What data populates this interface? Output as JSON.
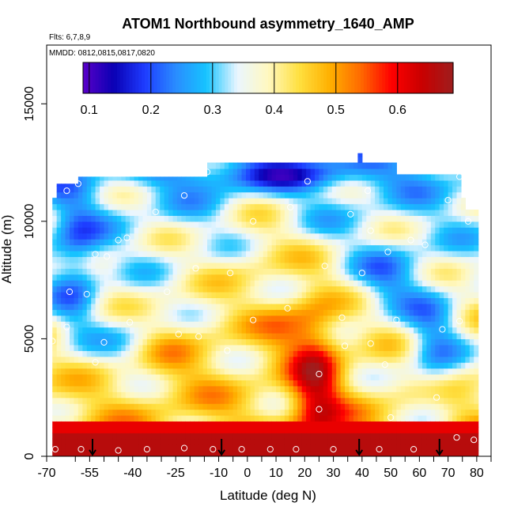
{
  "chart_data": {
    "type": "heatmap",
    "title": "ATOM1 Northbound asymmetry_1640_AMP",
    "notes": {
      "flights": "Flts: 6,7,8,9",
      "dates": "MMDD: 0812,0815,0817,0820"
    },
    "xlabel": "Latitude (deg N)",
    "ylabel": "Altitude (m)",
    "xlim": [
      -70,
      85
    ],
    "ylim": [
      0,
      17500
    ],
    "x_ticks": [
      -70,
      -55,
      -40,
      -25,
      -10,
      0,
      10,
      20,
      30,
      40,
      50,
      60,
      70,
      80
    ],
    "x_tick_labels": [
      "-70",
      "-55",
      "-40",
      "-25",
      "-10",
      "0",
      "10",
      "20",
      "30",
      "40",
      "50",
      "60",
      "70",
      "80"
    ],
    "x_minor_ticks": [
      -60,
      -50,
      -45,
      -35,
      -30,
      -20,
      -15,
      -5,
      5,
      15,
      25,
      35,
      45,
      55,
      65,
      75,
      85
    ],
    "y_ticks": [
      0,
      5000,
      10000,
      15000
    ],
    "y_tick_labels": [
      "0",
      "5000",
      "10000",
      "15000"
    ],
    "colorbar": {
      "min": 0.09,
      "max": 0.69,
      "ticks": [
        0.1,
        0.2,
        0.3,
        0.4,
        0.5,
        0.6
      ],
      "tick_labels": [
        "0.1",
        "0.2",
        "0.3",
        "0.4",
        "0.5",
        "0.6"
      ],
      "colors": [
        "#5a00c8",
        "#0a00b4",
        "#1e3cff",
        "#2a8cff",
        "#16c4ff",
        "#eaf6ff",
        "#fff8c0",
        "#ffe040",
        "#ffb000",
        "#ff6a00",
        "#ff0000",
        "#c80000",
        "#9e1e1e"
      ]
    },
    "grid": false,
    "legend": "colorbar top, inside plot",
    "arrow_markers_latitude": [
      -54,
      -9,
      39,
      67
    ],
    "field_regions": [
      {
        "name": "deep tropical red core",
        "lat_range": [
          18,
          32
        ],
        "alt_range": [
          0,
          6500
        ],
        "value": 0.62
      },
      {
        "name": "surface layer",
        "lat_range": [
          -68,
          80
        ],
        "alt_range": [
          0,
          1000
        ],
        "value": 0.66
      },
      {
        "name": "southern mid-troposphere blue",
        "lat_range": [
          -68,
          -45
        ],
        "alt_range": [
          5000,
          11000
        ],
        "value": 0.28
      },
      {
        "name": "upper northern cap",
        "lat_range": [
          -10,
          52
        ],
        "alt_range": [
          11000,
          12500
        ],
        "value": 0.3
      }
    ],
    "sample_points": [
      {
        "lat": -67,
        "alt": 300
      },
      {
        "lat": -58,
        "alt": 300
      },
      {
        "lat": -45,
        "alt": 250
      },
      {
        "lat": -35,
        "alt": 300
      },
      {
        "lat": -22,
        "alt": 350
      },
      {
        "lat": -12,
        "alt": 300
      },
      {
        "lat": -2,
        "alt": 300
      },
      {
        "lat": 8,
        "alt": 300
      },
      {
        "lat": 17,
        "alt": 300
      },
      {
        "lat": 30,
        "alt": 300
      },
      {
        "lat": 46,
        "alt": 300
      },
      {
        "lat": 58,
        "alt": 300
      },
      {
        "lat": 73,
        "alt": 800
      },
      {
        "lat": 79,
        "alt": 700
      },
      {
        "lat": -68,
        "alt": 4900
      },
      {
        "lat": -63,
        "alt": 5500
      },
      {
        "lat": -53,
        "alt": 4000
      },
      {
        "lat": -50,
        "alt": 4850
      },
      {
        "lat": -41,
        "alt": 5700
      },
      {
        "lat": -24,
        "alt": 5200
      },
      {
        "lat": -17,
        "alt": 5100
      },
      {
        "lat": -7,
        "alt": 4500
      },
      {
        "lat": 2,
        "alt": 5800
      },
      {
        "lat": 14,
        "alt": 6300
      },
      {
        "lat": 25,
        "alt": 3500
      },
      {
        "lat": 25,
        "alt": 2000
      },
      {
        "lat": 33,
        "alt": 5900
      },
      {
        "lat": 34,
        "alt": 4700
      },
      {
        "lat": 43,
        "alt": 4800
      },
      {
        "lat": 48,
        "alt": 3900
      },
      {
        "lat": 52,
        "alt": 5800
      },
      {
        "lat": 50,
        "alt": 1650
      },
      {
        "lat": 66,
        "alt": 2500
      },
      {
        "lat": 68,
        "alt": 5400
      },
      {
        "lat": 74,
        "alt": 5750
      },
      {
        "lat": -62,
        "alt": 7000
      },
      {
        "lat": -56,
        "alt": 6900
      },
      {
        "lat": -53,
        "alt": 8600
      },
      {
        "lat": -49,
        "alt": 8500
      },
      {
        "lat": -45,
        "alt": 9200
      },
      {
        "lat": -42,
        "alt": 9300
      },
      {
        "lat": -32,
        "alt": 10400
      },
      {
        "lat": -28,
        "alt": 7000
      },
      {
        "lat": -18,
        "alt": 8000
      },
      {
        "lat": -6,
        "alt": 7800
      },
      {
        "lat": 2,
        "alt": 10000
      },
      {
        "lat": 15,
        "alt": 10600
      },
      {
        "lat": 27,
        "alt": 8100
      },
      {
        "lat": 36,
        "alt": 10300
      },
      {
        "lat": 40,
        "alt": 7800
      },
      {
        "lat": 43,
        "alt": 9600
      },
      {
        "lat": 49,
        "alt": 8700
      },
      {
        "lat": 57,
        "alt": 9200
      },
      {
        "lat": 62,
        "alt": 9000
      },
      {
        "lat": 70,
        "alt": 10900
      },
      {
        "lat": 77,
        "alt": 10000
      },
      {
        "lat": -63,
        "alt": 11300
      },
      {
        "lat": -59,
        "alt": 11600
      },
      {
        "lat": -22,
        "alt": 11100
      },
      {
        "lat": -14,
        "alt": 12100
      },
      {
        "lat": 21,
        "alt": 11700
      },
      {
        "lat": 42,
        "alt": 11300
      },
      {
        "lat": 74,
        "alt": 11900
      }
    ]
  }
}
